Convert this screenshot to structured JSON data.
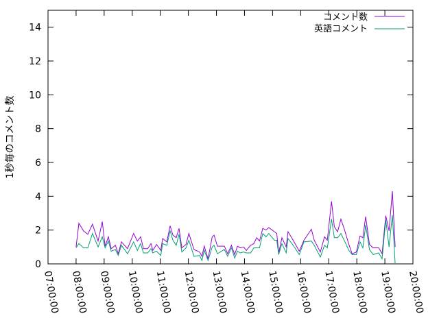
{
  "chart_data": {
    "type": "line",
    "title": "",
    "xlabel": "",
    "ylabel": "1秒毎のコメント数",
    "xlim": [
      "07:00:00",
      "20:00:00"
    ],
    "ylim": [
      0,
      15
    ],
    "x_ticks": [
      "07:00:00",
      "08:00:00",
      "09:00:00",
      "10:00:00",
      "11:00:00",
      "12:00:00",
      "13:00:00",
      "14:00:00",
      "15:00:00",
      "16:00:00",
      "17:00:00",
      "18:00:00",
      "19:00:00",
      "20:00:00"
    ],
    "y_ticks": [
      "0",
      "2",
      "4",
      "6",
      "8",
      "10",
      "12",
      "14"
    ],
    "grid": false,
    "legend_position": "top-right",
    "x": [
      "08:00",
      "08:06",
      "08:16",
      "08:25",
      "08:35",
      "08:47",
      "08:56",
      "09:02",
      "09:09",
      "09:15",
      "09:24",
      "09:30",
      "09:37",
      "09:50",
      "10:03",
      "10:11",
      "10:18",
      "10:24",
      "10:33",
      "10:40",
      "10:44",
      "10:52",
      "11:01",
      "11:05",
      "11:14",
      "11:21",
      "11:27",
      "11:34",
      "11:40",
      "11:46",
      "11:55",
      "12:01",
      "12:12",
      "12:24",
      "12:29",
      "12:34",
      "12:42",
      "12:51",
      "12:55",
      "13:02",
      "13:17",
      "13:24",
      "13:32",
      "13:39",
      "13:45",
      "13:51",
      "13:58",
      "14:04",
      "14:13",
      "14:20",
      "14:26",
      "14:32",
      "14:39",
      "14:46",
      "14:52",
      "15:04",
      "15:09",
      "15:13",
      "15:20",
      "15:29",
      "15:33",
      "15:44",
      "15:57",
      "16:07",
      "16:23",
      "16:29",
      "16:42",
      "16:51",
      "16:57",
      "17:06",
      "17:12",
      "17:19",
      "17:26",
      "17:34",
      "17:43",
      "17:50",
      "17:59",
      "18:07",
      "18:13",
      "18:19",
      "18:27",
      "18:35",
      "18:47",
      "18:54",
      "19:02",
      "19:09",
      "19:16",
      "19:22"
    ],
    "series": [
      {
        "name": "コメント数",
        "color": "#9400d3",
        "values": [
          1.0,
          2.4,
          1.95,
          1.75,
          2.35,
          1.35,
          2.5,
          1.05,
          1.6,
          0.9,
          1.1,
          0.6,
          1.3,
          0.9,
          1.8,
          1.35,
          1.6,
          0.9,
          0.9,
          1.2,
          0.8,
          1.15,
          0.8,
          1.5,
          1.3,
          2.25,
          1.7,
          1.55,
          2.1,
          0.95,
          1.15,
          1.8,
          0.85,
          0.7,
          0.45,
          1.05,
          0.3,
          1.6,
          1.7,
          1.05,
          1.05,
          0.6,
          1.1,
          0.55,
          1.05,
          0.95,
          1.0,
          0.8,
          1.1,
          1.2,
          1.55,
          1.35,
          2.1,
          2.0,
          2.15,
          1.9,
          1.8,
          0.65,
          1.55,
          1.0,
          1.9,
          1.4,
          0.75,
          1.4,
          2.05,
          1.4,
          0.7,
          1.6,
          1.4,
          3.7,
          2.2,
          1.9,
          2.65,
          2.0,
          1.15,
          0.6,
          0.7,
          1.65,
          1.55,
          2.8,
          1.15,
          0.95,
          0.95,
          0.6,
          2.85,
          1.95,
          4.3,
          1.0
        ]
      },
      {
        "name": "英語コメント",
        "color": "#009e73",
        "values": [
          0.95,
          1.2,
          0.95,
          0.95,
          1.8,
          1.0,
          1.6,
          0.95,
          1.35,
          0.75,
          0.85,
          0.5,
          1.1,
          0.6,
          1.3,
          0.8,
          1.2,
          0.65,
          0.65,
          0.9,
          0.65,
          0.75,
          0.5,
          1.2,
          1.1,
          1.95,
          1.4,
          1.1,
          1.75,
          0.7,
          0.95,
          1.4,
          0.45,
          0.5,
          0.2,
          0.8,
          0.2,
          1.0,
          1.1,
          0.6,
          0.85,
          0.45,
          0.95,
          0.35,
          0.75,
          0.65,
          0.7,
          0.65,
          0.65,
          0.95,
          0.95,
          0.95,
          1.8,
          1.6,
          1.8,
          1.4,
          1.4,
          0.55,
          1.2,
          0.65,
          1.5,
          1.1,
          0.55,
          1.3,
          1.35,
          1.1,
          0.4,
          1.1,
          0.95,
          2.65,
          1.55,
          1.55,
          1.8,
          1.35,
          0.8,
          0.55,
          0.55,
          1.3,
          0.95,
          2.3,
          0.85,
          0.55,
          0.65,
          0.3,
          2.6,
          1.0,
          2.9,
          0
        ]
      }
    ]
  }
}
